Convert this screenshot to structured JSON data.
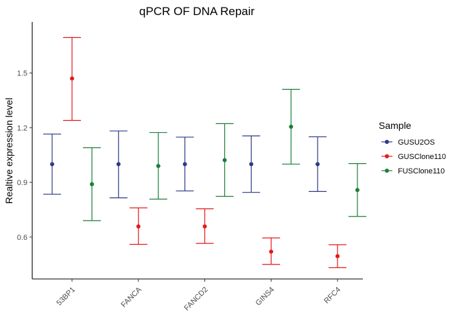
{
  "chart_data": {
    "type": "scatter",
    "title": "qPCR OF DNA Repair",
    "xlabel": "",
    "ylabel": "Realtive expression level",
    "categories": [
      "53BP1",
      "FANCA",
      "FANCD2",
      "GINS4",
      "RFC4"
    ],
    "ylim": [
      0.37,
      1.78
    ],
    "yticks": [
      0.6,
      0.9,
      1.2,
      1.5
    ],
    "ytick_labels": [
      "0.6",
      "0.9",
      "1.2",
      "1.5"
    ],
    "grid": false,
    "legend": {
      "title": "Sample",
      "position": "right"
    },
    "series": [
      {
        "name": "GUSU2OS",
        "color": "#2e3a87",
        "values": [
          1.0,
          1.0,
          1.0,
          1.0,
          1.0
        ],
        "lower": [
          0.835,
          0.815,
          0.853,
          0.845,
          0.85
        ],
        "upper": [
          1.165,
          1.182,
          1.148,
          1.155,
          1.15
        ]
      },
      {
        "name": "GUSClone110",
        "color": "#e41a1c",
        "values": [
          1.47,
          0.658,
          0.658,
          0.52,
          0.495
        ],
        "lower": [
          1.24,
          0.56,
          0.565,
          0.45,
          0.432
        ],
        "upper": [
          1.695,
          0.76,
          0.755,
          0.595,
          0.558
        ]
      },
      {
        "name": "FUSClone110",
        "color": "#1b7f3a",
        "values": [
          0.89,
          0.99,
          1.022,
          1.205,
          0.858
        ],
        "lower": [
          0.69,
          0.808,
          0.823,
          1.0,
          0.713
        ],
        "upper": [
          1.09,
          1.173,
          1.222,
          1.41,
          1.003
        ]
      }
    ]
  }
}
